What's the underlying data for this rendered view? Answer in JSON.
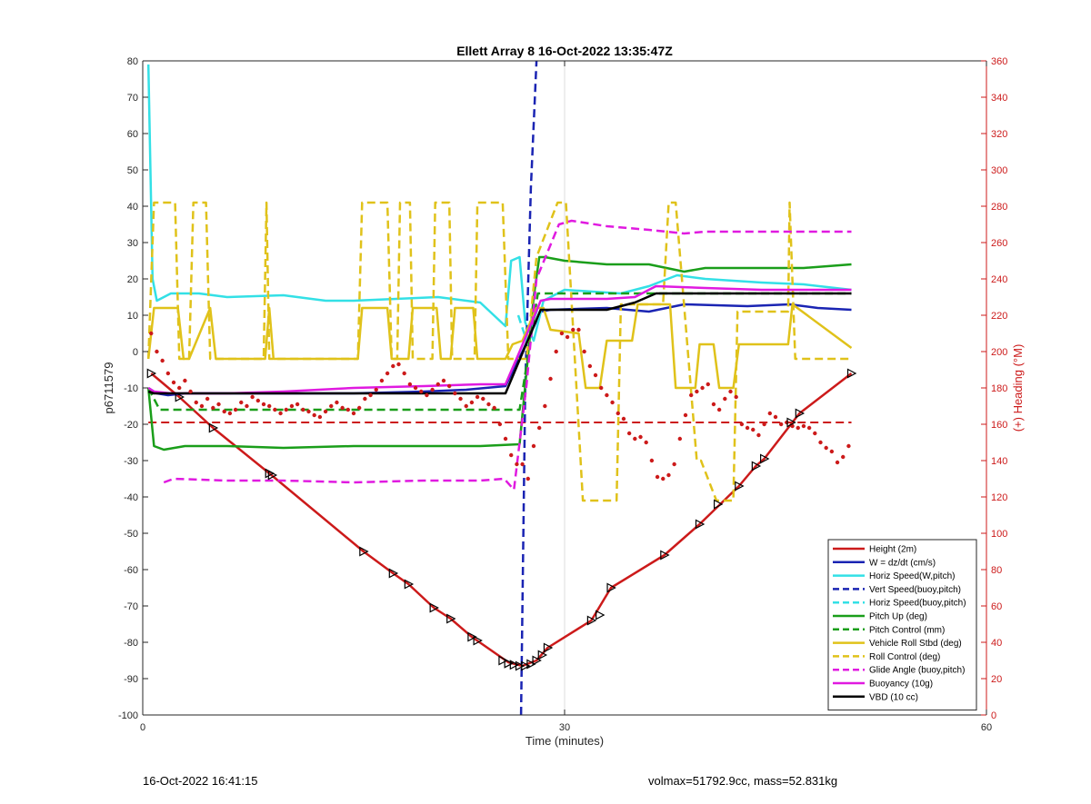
{
  "chart_data": {
    "type": "line",
    "title": "Ellett Array 8 16-Oct-2022 13:35:47Z",
    "xlabel": "Time (minutes)",
    "ylabel": "p6711579",
    "y2label": "(+) Heading (°M)",
    "xlim": [
      0,
      60
    ],
    "ylim": [
      -100,
      80
    ],
    "y2lim": [
      0,
      360
    ],
    "x_ticks": [
      0,
      30,
      60
    ],
    "y_ticks": [
      -100,
      -90,
      -80,
      -70,
      -60,
      -50,
      -40,
      -30,
      -20,
      -10,
      0,
      10,
      20,
      30,
      40,
      50,
      60,
      70,
      80
    ],
    "y2_ticks": [
      0,
      20,
      40,
      60,
      80,
      100,
      120,
      140,
      160,
      180,
      200,
      220,
      240,
      260,
      280,
      300,
      320,
      340,
      360
    ],
    "grid": "x-only",
    "legend_position": "bottom-right",
    "colors": {
      "height": "#cc1a1a",
      "w": "#1a24b3",
      "horiz": "#33e0e6",
      "pitch": "#1a9e1a",
      "roll": "#e0c21a",
      "glide": "#e01ae0",
      "vbd": "#000000",
      "heading": "#cc1a1a",
      "right_axis": "#cc1a1a"
    },
    "series": [
      {
        "name": "Height (2m)",
        "style": "solid",
        "color": "#cc1a1a",
        "x": [
          0.6,
          2.6,
          5,
          9,
          15.7,
          17.8,
          18.9,
          20.7,
          21.9,
          23.4,
          26,
          27,
          28,
          28.8,
          31.9,
          33.3,
          37.1,
          39.6,
          42.4,
          43.6,
          44.2,
          46.7,
          50.4
        ],
        "y": [
          -6,
          -12.5,
          -21,
          -33.5,
          -55,
          -61,
          -64,
          -70.5,
          -73.5,
          -78.5,
          -85.5,
          -86.5,
          -85,
          -81.5,
          -74,
          -65,
          -56,
          -47.5,
          -37,
          -31.5,
          -29.5,
          -17,
          -6
        ]
      },
      {
        "name": "W = dz/dt (cm/s)",
        "style": "solid",
        "color": "#1a24b3",
        "x": [
          0.4,
          1,
          1.8,
          3,
          6,
          10,
          15,
          20,
          23,
          25.8,
          27,
          28.3,
          29,
          33,
          36,
          38.5,
          43,
          46,
          48,
          50.4
        ],
        "y": [
          -10,
          -11.5,
          -12,
          -11.5,
          -11.5,
          -11.5,
          -11.5,
          -11,
          -10.5,
          -9.5,
          0,
          11,
          11.5,
          12,
          11,
          13,
          12.5,
          13,
          12,
          11.5
        ]
      },
      {
        "name": "Horiz Speed(W,pitch)",
        "style": "solid",
        "color": "#33e0e6",
        "x": [
          0.4,
          0.7,
          1,
          2,
          4,
          6,
          10,
          13,
          15,
          18,
          21,
          24,
          25.8,
          26.2,
          26.8,
          27.2,
          27.8,
          28.5,
          30,
          32,
          34,
          36,
          38,
          40,
          44,
          47,
          50.4
        ],
        "y": [
          79,
          20,
          14,
          16,
          16,
          15,
          15.5,
          14,
          14,
          14.5,
          15,
          13.5,
          7,
          25,
          26,
          8,
          3,
          14,
          17,
          16.5,
          16,
          18,
          21,
          20,
          19,
          18.5,
          17
        ]
      },
      {
        "name": "Vert Speed(buoy,pitch)",
        "style": "dashed",
        "color": "#1a24b3",
        "x": [
          26.9,
          27.2,
          27.6,
          28.0
        ],
        "y": [
          -100,
          -10,
          45,
          80
        ]
      },
      {
        "name": "Horiz Speed(buoy,pitch)",
        "style": "dashed",
        "color": "#33e0e6",
        "x": [
          26.7,
          27.3,
          28.1
        ],
        "y": [
          10,
          3,
          12
        ]
      },
      {
        "name": "Pitch Up (deg)",
        "style": "solid",
        "color": "#1a9e1a",
        "x": [
          0.4,
          0.8,
          1.5,
          3,
          6,
          10,
          15,
          20,
          24,
          26.8,
          27.8,
          28.2,
          28.6,
          30,
          33,
          36,
          38.5,
          40,
          44,
          47,
          50.4
        ],
        "y": [
          -10,
          -26,
          -27,
          -26,
          -26,
          -26.5,
          -26,
          -26,
          -26,
          -25.5,
          15,
          26,
          26,
          25,
          24,
          24,
          22,
          23,
          23,
          23,
          24
        ]
      },
      {
        "name": "Pitch Control (mm)",
        "style": "dashed",
        "color": "#1a9e1a",
        "x": [
          0.4,
          1.2,
          26.8,
          28.1,
          50.4
        ],
        "y": [
          -10,
          -16,
          -16,
          16,
          16
        ]
      },
      {
        "name": "Vehicle Roll Stbd (deg)",
        "style": "solid",
        "color": "#e0c21a",
        "x": [
          0.4,
          0.8,
          2.5,
          2.9,
          3.3,
          4.8,
          5.2,
          8.7,
          9.0,
          9.3,
          15.3,
          15.6,
          17.4,
          17.7,
          18.9,
          19.2,
          20.9,
          21.2,
          21.9,
          22.2,
          23.5,
          23.8,
          25.8,
          26.3,
          27,
          28,
          28.5,
          29,
          31,
          31.5,
          32.5,
          33,
          34.8,
          35.2,
          37.5,
          37.9,
          39.3,
          39.6,
          40.6,
          41.0,
          42.0,
          42.4,
          45.9,
          46.2,
          50.4
        ],
        "y": [
          -2,
          12,
          12,
          -2,
          -2,
          12,
          -2,
          -2,
          12,
          -2,
          -2,
          12,
          12,
          -2,
          -2,
          12,
          12,
          -2,
          -2,
          12,
          12,
          -2,
          -2,
          2,
          3,
          12,
          12,
          6,
          5,
          -10,
          -10,
          3,
          3,
          13,
          13,
          -10,
          -10,
          2,
          2,
          -10,
          -10,
          2,
          2,
          13,
          1
        ]
      },
      {
        "name": "Roll Control (deg)",
        "style": "dashed",
        "color": "#e0c21a",
        "x": [
          0.4,
          0.8,
          2.3,
          2.6,
          3.3,
          3.6,
          4.5,
          4.8,
          8.6,
          8.8,
          9.0,
          15.3,
          15.6,
          17.4,
          17.7,
          18.1,
          18.3,
          19.0,
          19.2,
          20.6,
          20.8,
          21.8,
          22.0,
          23.6,
          23.8,
          25.6,
          26.0,
          27.3,
          28.0,
          29.5,
          30.1,
          31.3,
          31.5,
          33.7,
          34.0,
          37.0,
          37.4,
          37.9,
          39.4,
          39.7,
          40.8,
          41.0,
          42.0,
          42.3,
          45.9,
          46.0,
          46.4,
          50.4
        ],
        "y": [
          -2,
          41,
          41,
          -2,
          -2,
          41,
          41,
          -2,
          -2,
          41,
          -2,
          -2,
          41,
          41,
          -2,
          -2,
          41,
          41,
          -2,
          -2,
          41,
          41,
          -2,
          -2,
          41,
          41,
          -2,
          -2,
          26,
          41,
          41,
          -41,
          -41,
          -41,
          13,
          13,
          41,
          41,
          -30,
          -30,
          -41,
          -41,
          -41,
          11,
          11,
          41,
          -2,
          -2
        ]
      },
      {
        "name": "Glide Angle (buoy,pitch)",
        "style": "dashed",
        "color": "#e01ae0",
        "x": [
          1.5,
          2.2,
          6,
          10,
          15,
          20,
          24,
          25.7,
          26.4,
          27.3,
          28,
          29.6,
          30.5,
          33,
          36,
          38.5,
          40,
          44,
          47,
          50.4
        ],
        "y": [
          -36,
          -35,
          -35.5,
          -35.5,
          -36,
          -35.5,
          -35.5,
          -35,
          -38,
          -9,
          20,
          35,
          36,
          34.5,
          33.5,
          32.5,
          33,
          33,
          33,
          33
        ]
      },
      {
        "name": "Buoyancy (10g)",
        "style": "solid",
        "color": "#e01ae0",
        "x": [
          0.4,
          0.8,
          2,
          6,
          10,
          15,
          20,
          24,
          25.8,
          26.8,
          28.3,
          29,
          33,
          35,
          36.5,
          40,
          44,
          48,
          50.4
        ],
        "y": [
          -10,
          -11,
          -11.5,
          -11.5,
          -11,
          -10,
          -9.5,
          -9,
          -9,
          0,
          14,
          14.5,
          14.5,
          15,
          18,
          17.5,
          17,
          17,
          17
        ]
      },
      {
        "name": "VBD (10 cc)",
        "style": "solid",
        "color": "#000000",
        "x": [
          0.4,
          0.8,
          2,
          10,
          15,
          20,
          25.8,
          28.3,
          29,
          33,
          35,
          36.5,
          40,
          44,
          50.4
        ],
        "y": [
          -11,
          -11.5,
          -11.5,
          -11.5,
          -11.5,
          -11.5,
          -11.5,
          11.5,
          11.5,
          11.5,
          13.5,
          16,
          16,
          16,
          16
        ]
      }
    ],
    "reference_lines": [
      {
        "style": "dashed",
        "color": "#cc1a1a",
        "y": -19.5,
        "x": [
          0.4,
          50.4
        ]
      }
    ],
    "heading_points": {
      "axis": "right",
      "color": "#cc1a1a",
      "x": [
        0.6,
        1.0,
        1.4,
        1.8,
        2.2,
        2.6,
        3.0,
        3.4,
        3.8,
        4.2,
        4.6,
        5.0,
        5.4,
        5.8,
        6.2,
        6.6,
        7.0,
        7.4,
        7.8,
        8.2,
        8.6,
        9.0,
        9.4,
        9.8,
        10.2,
        10.6,
        11.0,
        11.4,
        11.8,
        12.2,
        12.6,
        13.0,
        13.4,
        13.8,
        14.2,
        14.6,
        15.0,
        15.4,
        15.8,
        16.2,
        16.6,
        17.0,
        17.4,
        17.8,
        18.2,
        18.6,
        19.0,
        19.4,
        19.8,
        20.2,
        20.6,
        21.0,
        21.4,
        21.8,
        22.2,
        22.6,
        23.0,
        23.4,
        23.8,
        24.2,
        24.6,
        25.0,
        25.4,
        25.8,
        26.2,
        26.6,
        27.0,
        27.4,
        27.8,
        28.2,
        28.6,
        29.0,
        29.4,
        29.8,
        30.2,
        30.6,
        31.0,
        31.4,
        31.8,
        32.2,
        32.6,
        33.0,
        33.4,
        33.8,
        34.2,
        34.6,
        35.0,
        35.4,
        35.8,
        36.2,
        36.6,
        37.0,
        37.4,
        37.8,
        38.2,
        38.6,
        39.0,
        39.4,
        39.8,
        40.2,
        40.6,
        41.0,
        41.4,
        41.8,
        42.2,
        42.6,
        43.0,
        43.4,
        43.8,
        44.2,
        44.6,
        45.0,
        45.4,
        45.8,
        46.2,
        46.6,
        47.0,
        47.4,
        47.8,
        48.2,
        48.6,
        49.0,
        49.4,
        49.8,
        50.2
      ],
      "y": [
        210,
        200,
        195,
        188,
        183,
        180,
        184,
        178,
        172,
        170,
        174,
        169,
        171,
        167,
        166,
        168,
        172,
        170,
        175,
        173,
        171,
        170,
        168,
        166,
        168,
        170,
        171,
        168,
        167,
        165,
        164,
        167,
        170,
        172,
        169,
        168,
        166,
        169,
        174,
        176,
        179,
        184,
        188,
        192,
        193,
        188,
        182,
        180,
        178,
        176,
        179,
        182,
        184,
        181,
        177,
        174,
        170,
        172,
        175,
        174,
        171,
        169,
        160,
        152,
        143,
        138,
        138,
        130,
        148,
        158,
        170,
        185,
        200,
        210,
        208,
        212,
        212,
        200,
        192,
        187,
        180,
        176,
        172,
        166,
        163,
        155,
        152,
        153,
        150,
        140,
        131,
        130,
        132,
        138,
        152,
        165,
        176,
        178,
        180,
        182,
        171,
        168,
        174,
        178,
        175,
        160,
        158,
        157,
        154,
        160,
        166,
        164,
        160,
        161,
        159,
        158,
        159,
        158,
        155,
        150,
        147,
        145,
        139,
        142,
        148
      ]
    },
    "markers": {
      "shape": "triangle-right",
      "series": "Height (2m)",
      "x": [
        0.6,
        2.6,
        5,
        9,
        9.2,
        15.7,
        17.8,
        18.9,
        20.7,
        21.9,
        23.4,
        23.8,
        25.6,
        26.0,
        26.4,
        26.8,
        27.2,
        27.6,
        28.0,
        28.4,
        28.8,
        31.9,
        32.5,
        33.3,
        37.1,
        39.6,
        40.9,
        42.4,
        43.6,
        44.2,
        46.1,
        46.7,
        50.4
      ],
      "y": [
        -6,
        -12.5,
        -21,
        -33.5,
        -34,
        -55,
        -61,
        -64,
        -70.5,
        -73.5,
        -78.5,
        -79.5,
        -85,
        -85.8,
        -86.2,
        -86.5,
        -86.5,
        -86,
        -85,
        -83.5,
        -81.5,
        -74,
        -72.5,
        -65,
        -56,
        -47.5,
        -42,
        -37,
        -31.5,
        -29.5,
        -19.5,
        -17,
        -6
      ]
    }
  },
  "footer": {
    "left": "16-Oct-2022 16:41:15",
    "right": "volmax=51792.9cc, mass=52.831kg"
  }
}
